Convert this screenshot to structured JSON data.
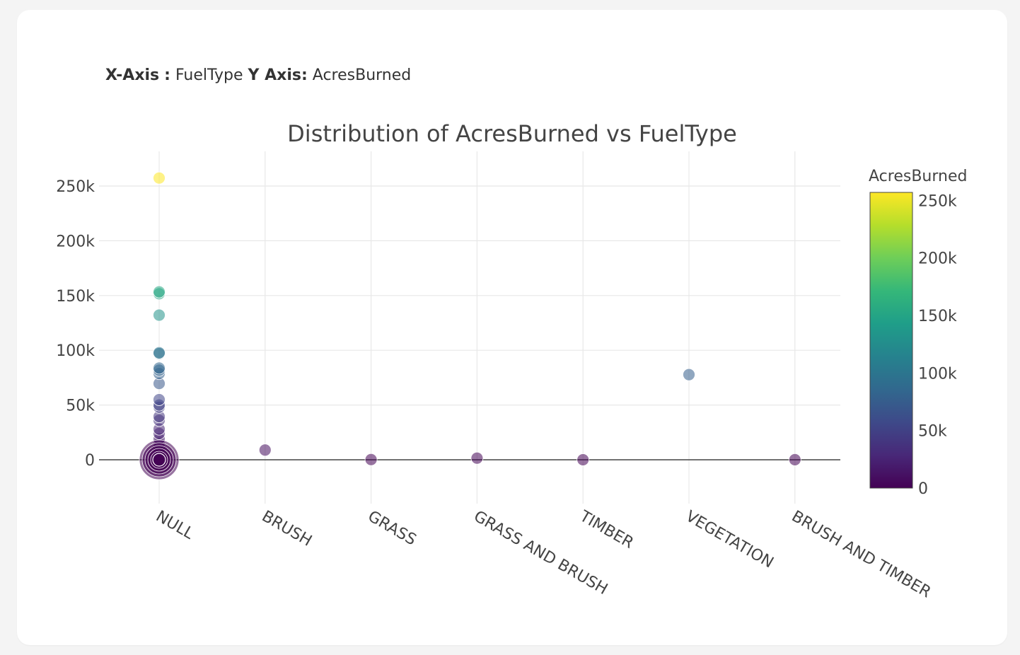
{
  "axis_info": {
    "x_label": "X-Axis",
    "x_sep": ":",
    "x_value": "FuelType",
    "y_label": "Y Axis:",
    "y_value": "AcresBurned"
  },
  "chart_data": {
    "type": "scatter",
    "title": "Distribution of AcresBurned vs FuelType",
    "xlabel": "",
    "ylabel": "",
    "categories": [
      "NULL",
      "BRUSH",
      "GRASS",
      "GRASS AND BRUSH",
      "TIMBER",
      "VEGETATION",
      "BRUSH AND TIMBER"
    ],
    "ylim": [
      -35000,
      270000
    ],
    "yticks": [
      0,
      50000,
      100000,
      150000,
      200000,
      250000
    ],
    "ytick_labels": [
      "0",
      "50k",
      "100k",
      "150k",
      "200k",
      "250k"
    ],
    "grid": true,
    "colorbar": {
      "title": "AcresBurned",
      "range": [
        0,
        257000
      ],
      "ticks": [
        0,
        50000,
        100000,
        150000,
        200000,
        250000
      ],
      "tick_labels": [
        "0",
        "50k",
        "100k",
        "150k",
        "200k",
        "250k"
      ],
      "colorscale": "Viridis"
    },
    "points": [
      {
        "x": "NULL",
        "y": 257314
      },
      {
        "x": "NULL",
        "y": 153336
      },
      {
        "x": "NULL",
        "y": 151623
      },
      {
        "x": "NULL",
        "y": 132127
      },
      {
        "x": "NULL",
        "y": 97717
      },
      {
        "x": "NULL",
        "y": 96949
      },
      {
        "x": "NULL",
        "y": 83733
      },
      {
        "x": "NULL",
        "y": 81826
      },
      {
        "x": "NULL",
        "y": 78698
      },
      {
        "x": "NULL",
        "y": 69636
      },
      {
        "x": "NULL",
        "y": 54940
      },
      {
        "x": "NULL",
        "y": 50000
      },
      {
        "x": "NULL",
        "y": 48019
      },
      {
        "x": "NULL",
        "y": 39387
      },
      {
        "x": "NULL",
        "y": 36000
      },
      {
        "x": "NULL",
        "y": 28000
      },
      {
        "x": "NULL",
        "y": 24000
      },
      {
        "x": "NULL",
        "y": 19000
      },
      {
        "x": "NULL",
        "y": 15000
      },
      {
        "x": "NULL",
        "y": 11000
      },
      {
        "x": "NULL",
        "y": 7000
      },
      {
        "x": "NULL",
        "y": 4000
      },
      {
        "x": "NULL",
        "y": 2000
      },
      {
        "x": "NULL",
        "y": 800
      },
      {
        "x": "NULL",
        "y": 300
      },
      {
        "x": "NULL",
        "y": 100
      },
      {
        "x": "NULL",
        "y": 20
      },
      {
        "x": "BRUSH",
        "y": 8900
      },
      {
        "x": "GRASS",
        "y": 200
      },
      {
        "x": "GRASS AND BRUSH",
        "y": 1500
      },
      {
        "x": "TIMBER",
        "y": 50
      },
      {
        "x": "VEGETATION",
        "y": 77776
      },
      {
        "x": "BRUSH AND TIMBER",
        "y": 100
      }
    ]
  }
}
